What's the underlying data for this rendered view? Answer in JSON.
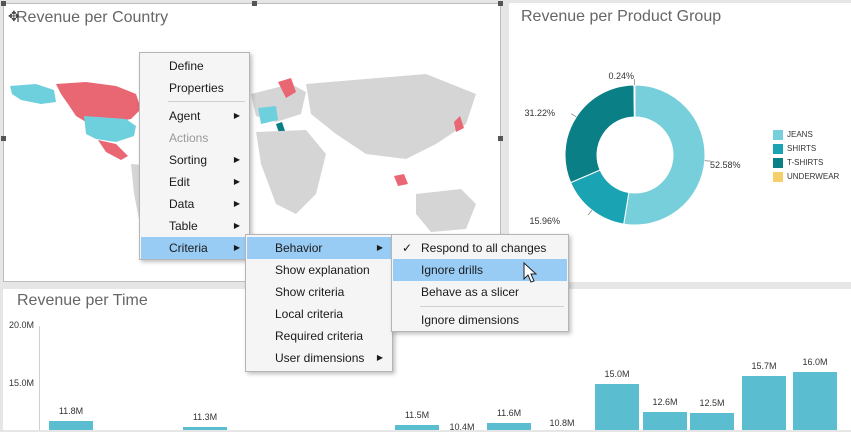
{
  "panels": {
    "country_title": "Revenue per Country",
    "product_title": "Revenue per Product Group",
    "time_title": "Revenue per Time"
  },
  "context_menu": {
    "items": [
      "Define",
      "Properties",
      "Agent",
      "Actions",
      "Sorting",
      "Edit",
      "Data",
      "Table",
      "Criteria"
    ]
  },
  "criteria_submenu": {
    "items": [
      "Behavior",
      "Show explanation",
      "Show criteria",
      "Local criteria",
      "Required criteria",
      "User dimensions"
    ]
  },
  "behavior_submenu": {
    "items": [
      "Respond to all changes",
      "Ignore drills",
      "Behave as a slicer",
      "Ignore dimensions"
    ],
    "checked": "Respond to all changes",
    "hovered": "Ignore drills"
  },
  "chart_data": [
    {
      "type": "pie",
      "title": "Revenue per Product Group",
      "categories": [
        "JEANS",
        "SHIRTS",
        "T-SHIRTS",
        "UNDERWEAR"
      ],
      "values": [
        52.58,
        15.96,
        31.22,
        0.24
      ],
      "labels": [
        "52.58%",
        "15.96%",
        "31.22%",
        "0.24%"
      ],
      "colors": [
        "#76cfdb",
        "#1aa3b3",
        "#0b7f86",
        "#f5cf6a"
      ],
      "legend_position": "right"
    },
    {
      "type": "bar",
      "title": "Revenue per Time",
      "y_ticks": [
        "20.0M",
        "15.0M"
      ],
      "ylim": [
        0,
        20
      ],
      "bars": [
        {
          "label": "11.8M",
          "value": 11.8
        },
        {
          "label": "11.3M",
          "value": 11.3
        },
        {
          "label": "11.5M",
          "value": 11.5
        },
        {
          "label": "10.4M",
          "value": 10.4
        },
        {
          "label": "11.6M",
          "value": 11.6
        },
        {
          "label": "10.8M",
          "value": 10.8
        },
        {
          "label": "15.0M",
          "value": 15.0
        },
        {
          "label": "12.6M",
          "value": 12.6
        },
        {
          "label": "12.5M",
          "value": 12.5
        },
        {
          "label": "15.7M",
          "value": 15.7
        },
        {
          "label": "16.0M",
          "value": 16.0
        }
      ],
      "color": "#5bbdd0"
    }
  ]
}
